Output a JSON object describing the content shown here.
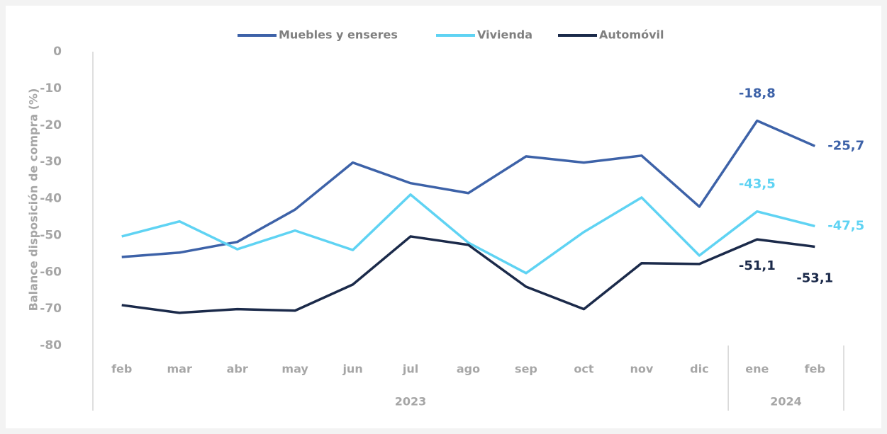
{
  "chart_data": {
    "type": "line",
    "y_axis_label": "Balance disposición de compra (%)",
    "categories": [
      "feb",
      "mar",
      "abr",
      "may",
      "jun",
      "jul",
      "ago",
      "sep",
      "oct",
      "nov",
      "dic",
      "ene",
      "feb"
    ],
    "groups": [
      {
        "label": "2023",
        "count": 11
      },
      {
        "label": "2024",
        "count": 2
      }
    ],
    "ylim": [
      -80,
      0
    ],
    "yticks": [
      0,
      -10,
      -20,
      -30,
      -40,
      -50,
      -60,
      -70,
      -80
    ],
    "legend": "top",
    "series": [
      {
        "name": "Muebles y enseres",
        "color": "#3d62a8",
        "values": [
          -55.9,
          -54.7,
          -51.8,
          -43,
          -30.2,
          -35.8,
          -38.5,
          -28.5,
          -30.2,
          -28.3,
          -42.2,
          -18.8,
          -25.7
        ],
        "value_labels": [
          null,
          null,
          null,
          null,
          null,
          null,
          null,
          null,
          null,
          null,
          null,
          "-18,8",
          "-25,7"
        ]
      },
      {
        "name": "Vivienda",
        "color": "#5fd3f3",
        "values": [
          -50.3,
          -46.2,
          -53.8,
          -48.7,
          -54,
          -38.9,
          -52,
          -60.3,
          -49.1,
          -39.7,
          -55.5,
          -43.5,
          -47.5
        ],
        "value_labels": [
          null,
          null,
          null,
          null,
          null,
          null,
          null,
          null,
          null,
          null,
          null,
          "-43,5",
          "-47,5"
        ]
      },
      {
        "name": "Automóvil",
        "color": "#1b2a4a",
        "values": [
          -69,
          -71.1,
          -70.1,
          -70.5,
          -63.4,
          -50.3,
          -52.6,
          -64,
          -70.1,
          -57.6,
          -57.8,
          -51.1,
          -53.1
        ],
        "value_labels": [
          null,
          null,
          null,
          null,
          null,
          null,
          null,
          null,
          null,
          null,
          null,
          "-51,1",
          "-53,1"
        ]
      }
    ]
  }
}
